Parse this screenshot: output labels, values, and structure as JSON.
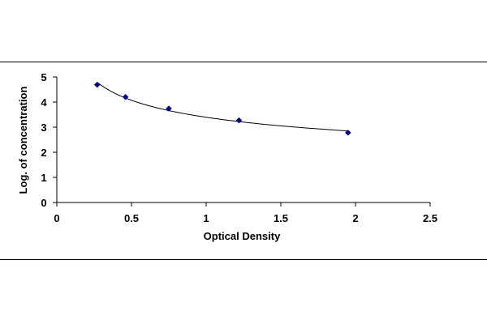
{
  "chart_data": {
    "type": "scatter",
    "xlabel": "Optical Density",
    "ylabel": "Log. of concentration",
    "xlim": [
      0,
      2.5
    ],
    "ylim": [
      0,
      5
    ],
    "x_ticks": [
      "0",
      "0.5",
      "1",
      "1.5",
      "2",
      "2.5"
    ],
    "y_ticks": [
      "0",
      "1",
      "2",
      "3",
      "4",
      "5"
    ],
    "grid": false,
    "legend": "none",
    "series": [
      {
        "x": [
          0.27,
          0.46,
          0.75,
          1.22,
          1.95
        ],
        "y": [
          4.69,
          4.2,
          3.74,
          3.27,
          2.78
        ],
        "marker": "diamond",
        "trendline": "power"
      }
    ],
    "colors": {
      "marker": "#000080",
      "line": "#000000",
      "axis": "#000000"
    }
  }
}
